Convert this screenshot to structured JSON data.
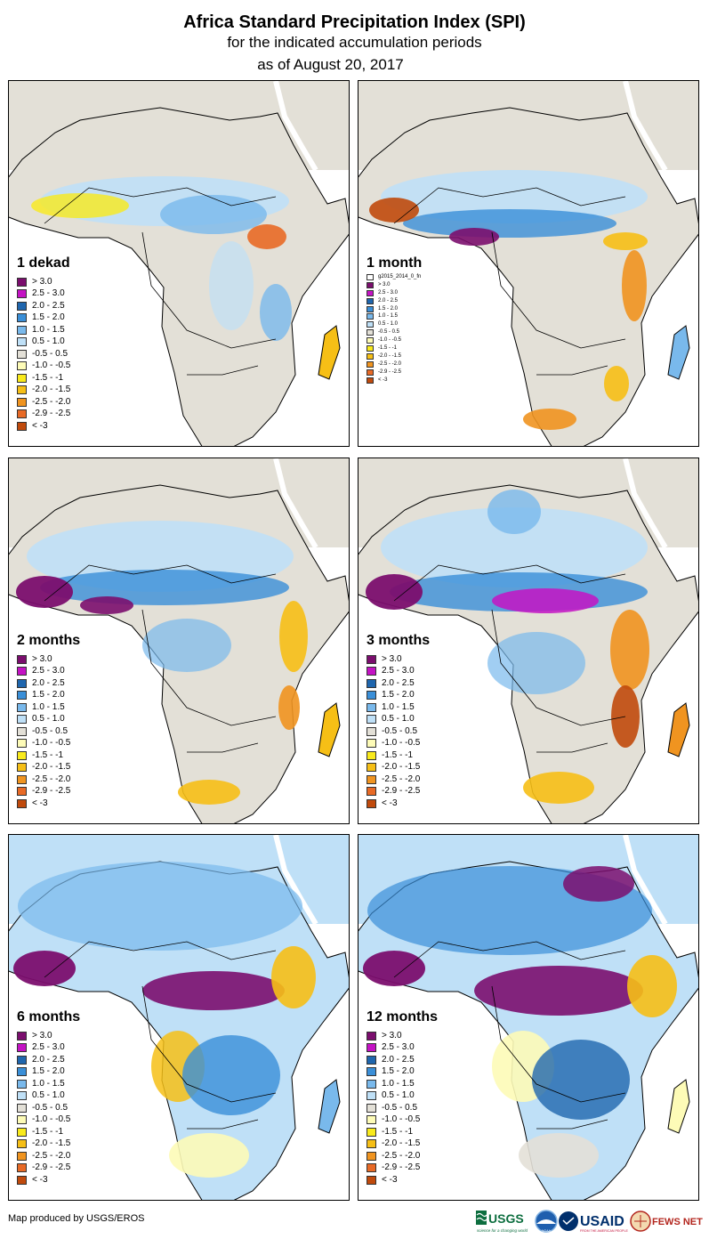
{
  "title": "Africa Standard Precipitation Index (SPI)",
  "subtitle": "for the indicated accumulation periods",
  "date_line": "as of August 20, 2017",
  "panels": [
    {
      "label": "1 dekad",
      "legend_header": null
    },
    {
      "label": "1 month",
      "legend_header": "g2015_2014_0_fn"
    },
    {
      "label": "2 months",
      "legend_header": null
    },
    {
      "label": "3 months",
      "legend_header": null
    },
    {
      "label": "6 months",
      "legend_header": null
    },
    {
      "label": "12 months",
      "legend_header": null
    }
  ],
  "legend_classes": [
    {
      "label": "> 3.0",
      "color": "#7b0e6e"
    },
    {
      "label": "2.5 - 3.0",
      "color": "#c413c4"
    },
    {
      "label": "2.0 - 2.5",
      "color": "#1f66ae"
    },
    {
      "label": "1.5 - 2.0",
      "color": "#3a8fd8"
    },
    {
      "label": "1.0 - 1.5",
      "color": "#79b9ec"
    },
    {
      "label": "0.5 - 1.0",
      "color": "#bfe0f7"
    },
    {
      "label": "-0.5 - 0.5",
      "color": "#e3e0d7"
    },
    {
      "label": "-1.0 - -0.5",
      "color": "#fdfbb7"
    },
    {
      "label": "-1.5 - -1",
      "color": "#f9ea1c"
    },
    {
      "label": "-2.0 - -1.5",
      "color": "#f6bf16"
    },
    {
      "label": "-2.5 - -2.0",
      "color": "#f09420"
    },
    {
      "label": "-2.9 - -2.5",
      "color": "#e86a26"
    },
    {
      "label": "< -3",
      "color": "#c04a0c"
    }
  ],
  "colors": {
    "land": "#e3e0d7",
    "ocean": "#ffffff",
    "border": "#000000"
  },
  "footer": "Map produced by USGS/EROS",
  "logos": {
    "usgs": "USGS",
    "usgs_tagline": "science for a changing world",
    "noaa": "NOAA",
    "usaid": "USAID",
    "usaid_tagline": "FROM THE AMERICAN PEOPLE",
    "fewsnet": "FEWS NET"
  }
}
